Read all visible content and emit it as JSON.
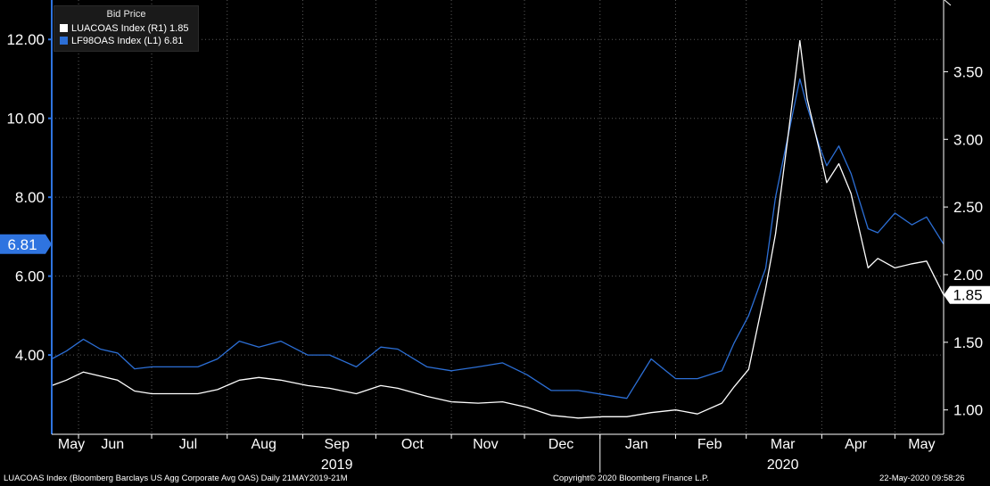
{
  "colors": {
    "background": "#000000",
    "luacoas": "#ffffff",
    "lf98oas": "#2c6fd6",
    "axis_left": "#2f74e0",
    "axis_right": "#ffffff"
  },
  "legend": {
    "title": "Bid Price",
    "entries": [
      {
        "label": "LUACOAS Index  (R1) 1.85",
        "color": "#ffffff"
      },
      {
        "label": "LF98OAS Index  (L1) 6.81",
        "color": "#2c6fd6"
      }
    ]
  },
  "footer": {
    "left": "LUACOAS Index (Bloomberg Barclays US Agg Corporate Avg OAS)  Daily 21MAY2019-21M",
    "center": "Copyright© 2020 Bloomberg Finance L.P.",
    "right": "22-May-2020 09:58:26"
  },
  "chart_data": {
    "type": "line",
    "x_month_labels": [
      "May",
      "Jun",
      "Jul",
      "Aug",
      "Sep",
      "Oct",
      "Nov",
      "Dec",
      "Jan",
      "Feb",
      "Mar",
      "Apr",
      "May"
    ],
    "x_year_labels": [
      "2019",
      "2020"
    ],
    "x_range": [
      "2019-05-21",
      "2020-05-21"
    ],
    "y_left": {
      "ticks": [
        "4.00",
        "6.00",
        "8.00",
        "10.00",
        "12.00"
      ],
      "range": [
        1.99,
        13.0
      ],
      "last_value_label": "6.81"
    },
    "y_right": {
      "ticks": [
        "1.00",
        "1.50",
        "2.00",
        "2.50",
        "3.00",
        "3.50"
      ],
      "range": [
        0.82,
        4.03
      ],
      "last_value_label": "1.85"
    },
    "grid": true,
    "legend_position": "top-left",
    "series": [
      {
        "name": "LF98OAS Index (L1)",
        "axis": "left",
        "color": "#2c6fd6",
        "points": [
          [
            "2019-05-21",
            3.9
          ],
          [
            "2019-05-27",
            4.1
          ],
          [
            "2019-06-03",
            4.4
          ],
          [
            "2019-06-10",
            4.15
          ],
          [
            "2019-06-17",
            4.05
          ],
          [
            "2019-06-24",
            3.65
          ],
          [
            "2019-07-01",
            3.7
          ],
          [
            "2019-07-10",
            3.7
          ],
          [
            "2019-07-20",
            3.7
          ],
          [
            "2019-07-28",
            3.9
          ],
          [
            "2019-08-06",
            4.35
          ],
          [
            "2019-08-14",
            4.2
          ],
          [
            "2019-08-23",
            4.35
          ],
          [
            "2019-09-03",
            4.0
          ],
          [
            "2019-09-12",
            4.0
          ],
          [
            "2019-09-23",
            3.7
          ],
          [
            "2019-10-03",
            4.2
          ],
          [
            "2019-10-10",
            4.15
          ],
          [
            "2019-10-22",
            3.7
          ],
          [
            "2019-11-01",
            3.6
          ],
          [
            "2019-11-12",
            3.7
          ],
          [
            "2019-11-22",
            3.8
          ],
          [
            "2019-12-02",
            3.5
          ],
          [
            "2019-12-12",
            3.1
          ],
          [
            "2019-12-23",
            3.1
          ],
          [
            "2020-01-02",
            3.0
          ],
          [
            "2020-01-12",
            2.9
          ],
          [
            "2020-01-22",
            3.9
          ],
          [
            "2020-02-01",
            3.4
          ],
          [
            "2020-02-10",
            3.4
          ],
          [
            "2020-02-20",
            3.6
          ],
          [
            "2020-02-25",
            4.3
          ],
          [
            "2020-03-02",
            5.0
          ],
          [
            "2020-03-09",
            6.2
          ],
          [
            "2020-03-13",
            8.0
          ],
          [
            "2020-03-18",
            9.5
          ],
          [
            "2020-03-23",
            11.0
          ],
          [
            "2020-03-26",
            10.3
          ],
          [
            "2020-03-31",
            9.3
          ],
          [
            "2020-04-03",
            8.8
          ],
          [
            "2020-04-08",
            9.3
          ],
          [
            "2020-04-13",
            8.6
          ],
          [
            "2020-04-20",
            7.2
          ],
          [
            "2020-04-24",
            7.1
          ],
          [
            "2020-05-01",
            7.6
          ],
          [
            "2020-05-08",
            7.3
          ],
          [
            "2020-05-14",
            7.5
          ],
          [
            "2020-05-21",
            6.81
          ]
        ]
      },
      {
        "name": "LUACOAS Index (R1)",
        "axis": "right",
        "color": "#ffffff",
        "points": [
          [
            "2019-05-21",
            1.18
          ],
          [
            "2019-05-27",
            1.22
          ],
          [
            "2019-06-03",
            1.28
          ],
          [
            "2019-06-10",
            1.25
          ],
          [
            "2019-06-17",
            1.22
          ],
          [
            "2019-06-24",
            1.14
          ],
          [
            "2019-07-01",
            1.12
          ],
          [
            "2019-07-10",
            1.12
          ],
          [
            "2019-07-20",
            1.12
          ],
          [
            "2019-07-28",
            1.15
          ],
          [
            "2019-08-06",
            1.22
          ],
          [
            "2019-08-14",
            1.24
          ],
          [
            "2019-08-23",
            1.22
          ],
          [
            "2019-09-03",
            1.18
          ],
          [
            "2019-09-12",
            1.16
          ],
          [
            "2019-09-23",
            1.12
          ],
          [
            "2019-10-03",
            1.18
          ],
          [
            "2019-10-10",
            1.16
          ],
          [
            "2019-10-22",
            1.1
          ],
          [
            "2019-11-01",
            1.06
          ],
          [
            "2019-11-12",
            1.05
          ],
          [
            "2019-11-22",
            1.06
          ],
          [
            "2019-12-02",
            1.02
          ],
          [
            "2019-12-12",
            0.96
          ],
          [
            "2019-12-23",
            0.94
          ],
          [
            "2020-01-02",
            0.95
          ],
          [
            "2020-01-12",
            0.95
          ],
          [
            "2020-01-22",
            0.98
          ],
          [
            "2020-02-01",
            1.0
          ],
          [
            "2020-02-10",
            0.97
          ],
          [
            "2020-02-20",
            1.05
          ],
          [
            "2020-02-25",
            1.17
          ],
          [
            "2020-03-02",
            1.3
          ],
          [
            "2020-03-09",
            1.9
          ],
          [
            "2020-03-13",
            2.3
          ],
          [
            "2020-03-18",
            3.0
          ],
          [
            "2020-03-23",
            3.73
          ],
          [
            "2020-03-26",
            3.3
          ],
          [
            "2020-03-31",
            2.92
          ],
          [
            "2020-04-03",
            2.68
          ],
          [
            "2020-04-08",
            2.82
          ],
          [
            "2020-04-13",
            2.6
          ],
          [
            "2020-04-20",
            2.05
          ],
          [
            "2020-04-24",
            2.12
          ],
          [
            "2020-05-01",
            2.05
          ],
          [
            "2020-05-08",
            2.08
          ],
          [
            "2020-05-14",
            2.1
          ],
          [
            "2020-05-21",
            1.85
          ]
        ]
      }
    ]
  }
}
